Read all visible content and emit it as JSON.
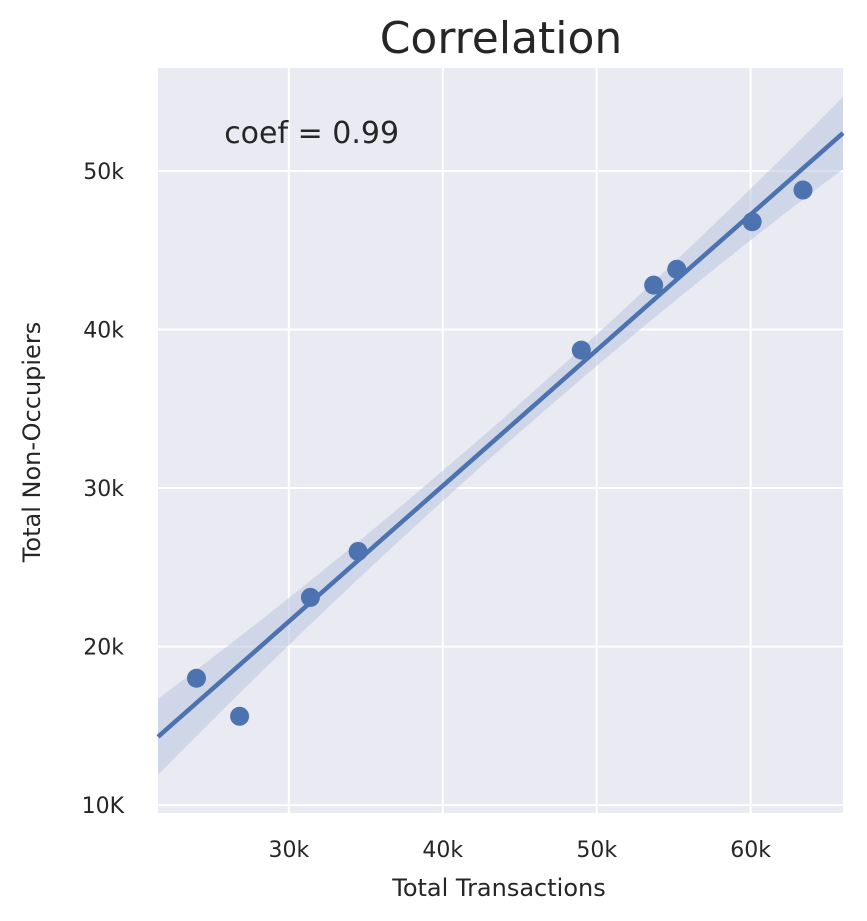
{
  "chart_data": {
    "type": "scatter",
    "title": "Correlation",
    "xlabel": "Total Transactions",
    "ylabel": "Total Non-Occupiers",
    "xlim": [
      21500,
      66000
    ],
    "ylim": [
      9500,
      56500
    ],
    "x_ticks": [
      {
        "value": 30000,
        "label": "30k"
      },
      {
        "value": 40000,
        "label": "40k"
      },
      {
        "value": 50000,
        "label": "50k"
      },
      {
        "value": 60000,
        "label": "60k"
      }
    ],
    "y_ticks": [
      {
        "value": 10000,
        "label": "10K"
      },
      {
        "value": 20000,
        "label": "20k"
      },
      {
        "value": 30000,
        "label": "30k"
      },
      {
        "value": 40000,
        "label": "40k"
      },
      {
        "value": 50000,
        "label": "50k"
      }
    ],
    "points": [
      {
        "x": 24000,
        "y": 18000
      },
      {
        "x": 26800,
        "y": 15600
      },
      {
        "x": 31400,
        "y": 23100
      },
      {
        "x": 34500,
        "y": 26000
      },
      {
        "x": 49000,
        "y": 38700
      },
      {
        "x": 53700,
        "y": 42800
      },
      {
        "x": 55200,
        "y": 43800
      },
      {
        "x": 60100,
        "y": 46800
      },
      {
        "x": 63400,
        "y": 48800
      }
    ],
    "regression": {
      "slope": 0.856,
      "intercept": -4100
    },
    "annotation": {
      "text": "coef = 0.99",
      "x": 25800,
      "y": 52400
    },
    "grid": true,
    "colors": {
      "background": "#eaeaf2",
      "grid": "#ffffff",
      "marker": "#4c72b0",
      "line": "#4c72b0",
      "band": "#b8c4e0"
    }
  }
}
